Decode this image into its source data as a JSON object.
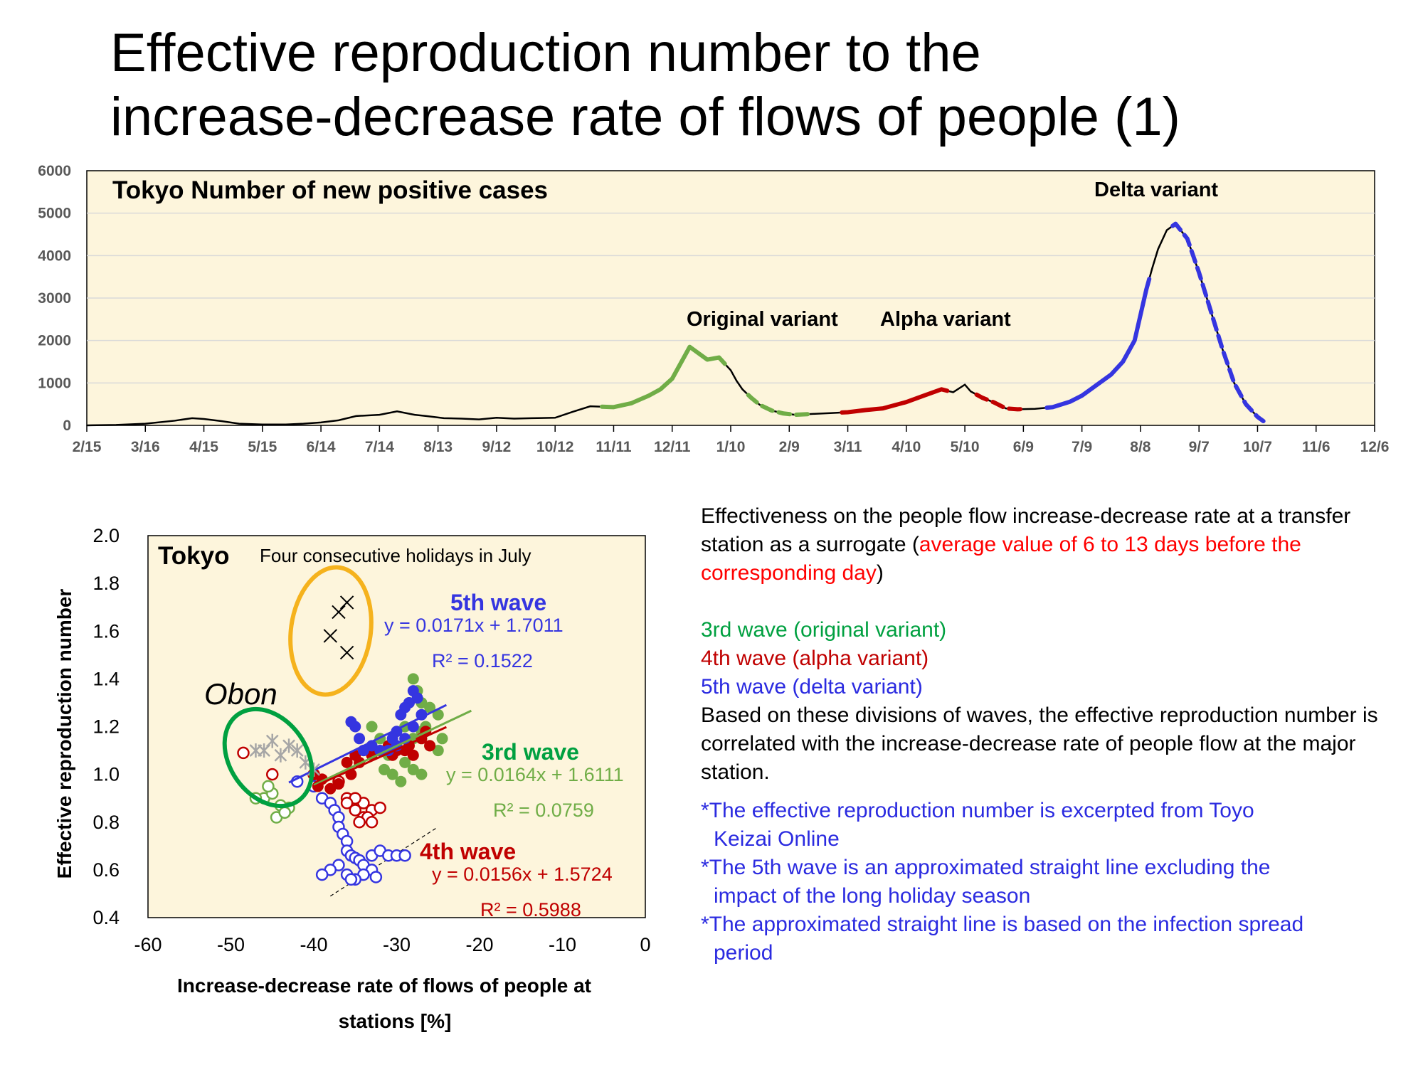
{
  "title_lines": [
    "Effective reproduction number to the",
    "increase-decrease rate of flows of people (1)"
  ],
  "chart_data": [
    {
      "type": "line",
      "title": "Tokyo  Number of new positive cases",
      "x_ticks": [
        "2/15",
        "3/16",
        "4/15",
        "5/15",
        "6/14",
        "7/14",
        "8/13",
        "9/12",
        "10/12",
        "11/11",
        "12/11",
        "1/10",
        "2/9",
        "3/11",
        "4/10",
        "5/10",
        "6/9",
        "7/9",
        "8/8",
        "9/7",
        "10/7",
        "11/6",
        "12/6"
      ],
      "y_ticks": [
        "0",
        "1000",
        "2000",
        "3000",
        "4000",
        "5000",
        "6000"
      ],
      "ylim": [
        0,
        6000
      ],
      "annotations": [
        "Original variant",
        "Alpha variant",
        "Delta variant"
      ],
      "x": [
        0,
        0.5,
        1,
        1.5,
        1.8,
        2.0,
        2.3,
        2.6,
        3,
        3.4,
        3.7,
        4,
        4.3,
        4.6,
        5,
        5.3,
        5.6,
        5.8,
        6.1,
        6.4,
        6.7,
        7,
        7.3,
        7.6,
        8,
        8.3,
        8.6,
        9,
        9.3,
        9.6,
        9.8,
        10,
        10.3,
        10.6,
        10.8,
        11,
        11.1,
        11.2,
        11.35,
        11.5,
        11.7,
        11.9,
        12.1,
        12.4,
        12.7,
        13,
        13.3,
        13.6,
        14,
        14.3,
        14.6,
        14.8,
        15,
        15.1,
        15.3,
        15.5,
        15.7,
        15.9,
        16.2,
        16.5,
        16.8,
        17,
        17.2,
        17.5,
        17.7,
        17.9,
        18,
        18.1,
        18.2,
        18.3,
        18.45,
        18.6,
        18.8,
        19,
        19.2,
        19.4,
        19.6,
        19.8,
        20,
        20.1
      ],
      "y": [
        0,
        10,
        40,
        110,
        170,
        150,
        100,
        40,
        20,
        20,
        40,
        70,
        120,
        220,
        250,
        330,
        250,
        220,
        170,
        160,
        140,
        180,
        160,
        170,
        180,
        320,
        450,
        430,
        520,
        700,
        850,
        1100,
        1850,
        1550,
        1600,
        1300,
        1050,
        850,
        650,
        480,
        350,
        280,
        250,
        270,
        290,
        310,
        360,
        400,
        550,
        700,
        850,
        780,
        960,
        800,
        650,
        540,
        400,
        380,
        390,
        430,
        560,
        700,
        900,
        1200,
        1500,
        2000,
        2600,
        3200,
        3700,
        4150,
        4600,
        4750,
        4400,
        3600,
        2700,
        1800,
        1000,
        500,
        200,
        100
      ],
      "segments": [
        {
          "name": "3rd wave",
          "color": "#70ad47",
          "style": "solid",
          "x_range": [
            8.8,
            10.9
          ]
        },
        {
          "name": "3rd wave",
          "color": "#70ad47",
          "style": "dashed",
          "x_range": [
            11.3,
            12.4
          ]
        },
        {
          "name": "4th wave",
          "color": "#c00000",
          "style": "solid",
          "x_range": [
            12.9,
            14.7
          ]
        },
        {
          "name": "4th wave",
          "color": "#c00000",
          "style": "dashed",
          "x_range": [
            15.2,
            16.0
          ]
        },
        {
          "name": "5th wave",
          "color": "#3535e0",
          "style": "solid",
          "x_range": [
            16.4,
            18.15
          ]
        },
        {
          "name": "5th wave",
          "color": "#3535e0",
          "style": "dashed",
          "x_range": [
            18.55,
            20.1
          ]
        }
      ]
    },
    {
      "type": "scatter",
      "title": "Tokyo",
      "subtitle": "Four consecutive holidays in July",
      "xlabel_lines": [
        "Increase-decrease rate of flows of people at",
        "stations [%]"
      ],
      "ylabel": "Effective reproduction number",
      "xlim": [
        -60,
        0
      ],
      "ylim": [
        0.4,
        2.0
      ],
      "x_ticks": [
        "-60",
        "-50",
        "-40",
        "-30",
        "-20",
        "-10",
        "0"
      ],
      "y_ticks": [
        "0.4",
        "0.6",
        "0.8",
        "1.0",
        "1.2",
        "1.4",
        "1.6",
        "1.8",
        "2.0"
      ],
      "annotation_obon": "Obon",
      "series": [
        {
          "name": "3rd wave",
          "label": "3rd wave",
          "color": "#70ad47",
          "equation": "y = 0.0164x + 1.6111",
          "r2": "R² = 0.0759",
          "slope": 0.0164,
          "intercept": 1.6111,
          "fit_range": [
            -40,
            -21
          ],
          "points": [
            [
              -28,
              1.4
            ],
            [
              -27.5,
              1.35
            ],
            [
              -28.5,
              1.3
            ],
            [
              -27,
              1.3
            ],
            [
              -26,
              1.28
            ],
            [
              -25,
              1.25
            ],
            [
              -29,
              1.2
            ],
            [
              -28,
              1.15
            ],
            [
              -27,
              1.18
            ],
            [
              -26,
              1.12
            ],
            [
              -25,
              1.1
            ],
            [
              -30,
              1.1
            ],
            [
              -29,
              1.05
            ],
            [
              -28,
              1.02
            ],
            [
              -27,
              1.0
            ],
            [
              -30.5,
              1.0
            ],
            [
              -29.5,
              0.97
            ],
            [
              -33,
              1.2
            ],
            [
              -32,
              1.15
            ],
            [
              -31,
              1.08
            ],
            [
              -26.5,
              1.2
            ],
            [
              -24.5,
              1.15
            ],
            [
              -31.5,
              1.02
            ]
          ],
          "hollow_points": [
            [
              -46,
              0.9
            ],
            [
              -45,
              0.92
            ],
            [
              -44,
              0.87
            ],
            [
              -43,
              0.86
            ],
            [
              -44.5,
              0.82
            ],
            [
              -43.5,
              0.84
            ],
            [
              -47,
              0.9
            ],
            [
              -45.5,
              0.95
            ]
          ]
        },
        {
          "name": "4th wave",
          "label": "4th wave",
          "color": "#c00000",
          "equation": "y = 0.0156x + 1.5724",
          "r2": "R² = 0.5988",
          "slope": 0.0156,
          "intercept": 1.5724,
          "fit_range": [
            -40,
            -24
          ],
          "points": [
            [
              -40,
              1.0
            ],
            [
              -39,
              0.98
            ],
            [
              -39.5,
              0.95
            ],
            [
              -38,
              0.94
            ],
            [
              -37,
              0.96
            ],
            [
              -36,
              1.05
            ],
            [
              -35,
              1.08
            ],
            [
              -34,
              1.1
            ],
            [
              -33,
              1.08
            ],
            [
              -32,
              1.1
            ],
            [
              -31,
              1.12
            ],
            [
              -30,
              1.1
            ],
            [
              -29,
              1.1
            ],
            [
              -28,
              1.08
            ],
            [
              -27,
              1.15
            ],
            [
              -26.5,
              1.18
            ],
            [
              -26,
              1.12
            ],
            [
              -35.5,
              1.0
            ],
            [
              -34.5,
              1.05
            ],
            [
              -30.5,
              1.08
            ],
            [
              -28.5,
              1.12
            ]
          ],
          "hollow_points": [
            [
              -48.5,
              1.09
            ],
            [
              -45,
              1.0
            ],
            [
              -40,
              1.0
            ],
            [
              -37,
              0.97
            ],
            [
              -36,
              0.9
            ],
            [
              -35,
              0.85
            ],
            [
              -34,
              0.82
            ],
            [
              -33,
              0.85
            ],
            [
              -33.5,
              0.82
            ],
            [
              -34,
              0.88
            ],
            [
              -35,
              0.9
            ],
            [
              -36,
              0.88
            ],
            [
              -34.5,
              0.8
            ],
            [
              -33,
              0.8
            ],
            [
              -32,
              0.86
            ]
          ]
        },
        {
          "name": "5th wave",
          "label": "5th wave",
          "color": "#3535e0",
          "equation": "y = 0.0171x + 1.7011",
          "r2": "R² = 0.1522",
          "slope": 0.0171,
          "intercept": 1.7011,
          "fit_range": [
            -43,
            -24
          ],
          "points": [
            [
              -28,
              1.35
            ],
            [
              -27.5,
              1.32
            ],
            [
              -28.5,
              1.3
            ],
            [
              -29,
              1.28
            ],
            [
              -27,
              1.25
            ],
            [
              -28,
              1.2
            ],
            [
              -29,
              1.15
            ],
            [
              -30,
              1.12
            ],
            [
              -31,
              1.1
            ],
            [
              -32,
              1.1
            ],
            [
              -33,
              1.12
            ],
            [
              -34,
              1.1
            ],
            [
              -35,
              1.2
            ],
            [
              -35.5,
              1.22
            ],
            [
              -34.5,
              1.15
            ],
            [
              -30,
              1.18
            ],
            [
              -29.5,
              1.25
            ],
            [
              -30.5,
              1.15
            ]
          ],
          "hollow_points": [
            [
              -42,
              0.97
            ],
            [
              -40,
              0.95
            ],
            [
              -39,
              0.9
            ],
            [
              -38,
              0.88
            ],
            [
              -37.5,
              0.85
            ],
            [
              -37,
              0.82
            ],
            [
              -37,
              0.78
            ],
            [
              -36.5,
              0.75
            ],
            [
              -36,
              0.72
            ],
            [
              -36,
              0.68
            ],
            [
              -35.5,
              0.66
            ],
            [
              -35,
              0.65
            ],
            [
              -34.5,
              0.64
            ],
            [
              -34,
              0.62
            ],
            [
              -33,
              0.66
            ],
            [
              -32,
              0.68
            ],
            [
              -31,
              0.66
            ],
            [
              -30,
              0.66
            ],
            [
              -29,
              0.66
            ],
            [
              -33,
              0.6
            ],
            [
              -34,
              0.58
            ],
            [
              -35,
              0.56
            ],
            [
              -36,
              0.58
            ],
            [
              -37,
              0.62
            ],
            [
              -38,
              0.6
            ],
            [
              -39,
              0.58
            ],
            [
              -35.5,
              0.56
            ],
            [
              -32.5,
              0.57
            ]
          ]
        }
      ],
      "holiday_points": [
        [
          -36,
          1.72
        ],
        [
          -37,
          1.68
        ],
        [
          -38,
          1.58
        ],
        [
          -36,
          1.51
        ]
      ],
      "obon_points": [
        [
          -46,
          1.1
        ],
        [
          -45,
          1.14
        ],
        [
          -44,
          1.08
        ],
        [
          -43,
          1.12
        ],
        [
          -42,
          1.1
        ],
        [
          -41,
          1.05
        ],
        [
          -47,
          1.1
        ],
        [
          -40,
          1.02
        ]
      ],
      "reference_line": [
        [
          -38,
          0.49
        ],
        [
          -25,
          0.78
        ]
      ]
    }
  ],
  "text_panel": {
    "intro_black": "Effectiveness on the people flow increase-decrease rate at a transfer station as a surrogate (",
    "intro_red": "average value of 6 to 13 days before the corresponding day",
    "intro_end": ")",
    "wave3": "3rd wave (original variant)",
    "wave4": "4th wave (alpha variant)",
    "wave5": "5th wave (delta variant)",
    "body": "Based on these divisions of waves, the effective reproduction number is correlated with the increase-decrease rate of people flow at the major station.",
    "notes": [
      [
        "*The effective reproduction number is excerpted from Toyo",
        "Keizai Online"
      ],
      [
        "*The 5th wave is an approximated straight line excluding the",
        "impact of the long holiday season"
      ],
      [
        "*The approximated straight line is based on the infection spread",
        "period"
      ]
    ]
  },
  "colors": {
    "plot_bg": "#fdf5dc",
    "wave3": "#70ad47",
    "wave4": "#c00000",
    "wave5": "#3535e0",
    "holiday_circle": "#f5b21d",
    "obon_ellipse": "#00a040"
  }
}
